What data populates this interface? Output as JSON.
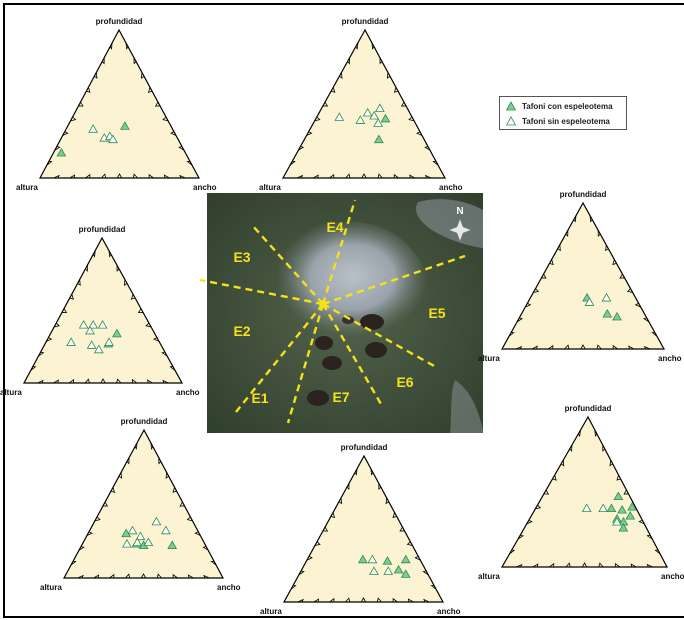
{
  "labels": {
    "top": "profundidad",
    "left": "altura",
    "right": "ancho"
  },
  "legend": {
    "filled": "Tafoni con espeleotema",
    "open": "Tafoni sin espeleotema"
  },
  "colors": {
    "triangle_fill": "#fbf3d2",
    "marker_fill": "#7ecb94",
    "marker_stroke": "#2e8b4e",
    "zone_line": "#f3e21a",
    "zone_label": "#f3e21a"
  },
  "map": {
    "north_label": "N",
    "zones": [
      "E1",
      "E2",
      "E3",
      "E4",
      "E5",
      "E6",
      "E7"
    ]
  },
  "diagrams": [
    {
      "id": "E3",
      "points": [
        {
          "filled": true,
          "a": 0.17,
          "b": 0.05
        },
        {
          "filled": true,
          "a": 0.35,
          "b": 0.36
        },
        {
          "filled": false,
          "a": 0.33,
          "b": 0.17
        },
        {
          "filled": false,
          "a": 0.27,
          "b": 0.27
        },
        {
          "filled": false,
          "a": 0.28,
          "b": 0.3
        },
        {
          "filled": false,
          "a": 0.26,
          "b": 0.33
        }
      ]
    },
    {
      "id": "E4",
      "points": [
        {
          "filled": true,
          "a": 0.26,
          "b": 0.46
        },
        {
          "filled": true,
          "a": 0.4,
          "b": 0.43
        },
        {
          "filled": false,
          "a": 0.37,
          "b": 0.4
        },
        {
          "filled": false,
          "a": 0.42,
          "b": 0.35
        },
        {
          "filled": false,
          "a": 0.39,
          "b": 0.28
        },
        {
          "filled": false,
          "a": 0.41,
          "b": 0.14
        },
        {
          "filled": false,
          "a": 0.44,
          "b": 0.3
        },
        {
          "filled": false,
          "a": 0.47,
          "b": 0.36
        }
      ]
    },
    {
      "id": "E5",
      "points": [
        {
          "filled": true,
          "a": 0.35,
          "b": 0.35
        },
        {
          "filled": true,
          "a": 0.24,
          "b": 0.53
        },
        {
          "filled": true,
          "a": 0.22,
          "b": 0.6
        },
        {
          "filled": false,
          "a": 0.35,
          "b": 0.47
        },
        {
          "filled": false,
          "a": 0.32,
          "b": 0.38
        }
      ]
    },
    {
      "id": "E2",
      "points": [
        {
          "filled": true,
          "a": 0.34,
          "b": 0.42
        },
        {
          "filled": true,
          "a": 0.27,
          "b": 0.4
        },
        {
          "filled": false,
          "a": 0.4,
          "b": 0.3
        },
        {
          "filled": false,
          "a": 0.4,
          "b": 0.24
        },
        {
          "filled": false,
          "a": 0.4,
          "b": 0.18
        },
        {
          "filled": false,
          "a": 0.28,
          "b": 0.16
        },
        {
          "filled": false,
          "a": 0.26,
          "b": 0.3
        },
        {
          "filled": false,
          "a": 0.23,
          "b": 0.36
        },
        {
          "filled": false,
          "a": 0.28,
          "b": 0.4
        },
        {
          "filled": false,
          "a": 0.36,
          "b": 0.24
        }
      ]
    },
    {
      "id": "E1",
      "points": [
        {
          "filled": true,
          "a": 0.22,
          "b": 0.57
        },
        {
          "filled": true,
          "a": 0.3,
          "b": 0.24
        },
        {
          "filled": true,
          "a": 0.23,
          "b": 0.34
        },
        {
          "filled": true,
          "a": 0.22,
          "b": 0.39
        },
        {
          "filled": false,
          "a": 0.32,
          "b": 0.27
        },
        {
          "filled": false,
          "a": 0.23,
          "b": 0.28
        },
        {
          "filled": false,
          "a": 0.24,
          "b": 0.41
        },
        {
          "filled": false,
          "a": 0.32,
          "b": 0.48
        },
        {
          "filled": false,
          "a": 0.38,
          "b": 0.39
        },
        {
          "filled": false,
          "a": 0.28,
          "b": 0.34
        },
        {
          "filled": false,
          "a": 0.24,
          "b": 0.34
        }
      ]
    },
    {
      "id": "E7",
      "points": [
        {
          "filled": true,
          "a": 0.29,
          "b": 0.35
        },
        {
          "filled": true,
          "a": 0.28,
          "b": 0.51
        },
        {
          "filled": true,
          "a": 0.29,
          "b": 0.62
        },
        {
          "filled": true,
          "a": 0.22,
          "b": 0.61
        },
        {
          "filled": true,
          "a": 0.19,
          "b": 0.67
        },
        {
          "filled": false,
          "a": 0.21,
          "b": 0.46
        },
        {
          "filled": false,
          "a": 0.21,
          "b": 0.55
        },
        {
          "filled": false,
          "a": 0.29,
          "b": 0.41
        }
      ]
    },
    {
      "id": "E6",
      "points": [
        {
          "filled": true,
          "a": 0.47,
          "b": 0.46
        },
        {
          "filled": true,
          "a": 0.39,
          "b": 0.46
        },
        {
          "filled": true,
          "a": 0.38,
          "b": 0.53
        },
        {
          "filled": true,
          "a": 0.4,
          "b": 0.58
        },
        {
          "filled": true,
          "a": 0.32,
          "b": 0.53
        },
        {
          "filled": true,
          "a": 0.3,
          "b": 0.58
        },
        {
          "filled": true,
          "a": 0.26,
          "b": 0.6
        },
        {
          "filled": true,
          "a": 0.34,
          "b": 0.6
        },
        {
          "filled": false,
          "a": 0.39,
          "b": 0.31
        },
        {
          "filled": false,
          "a": 0.39,
          "b": 0.41
        },
        {
          "filled": false,
          "a": 0.3,
          "b": 0.54
        }
      ]
    }
  ]
}
